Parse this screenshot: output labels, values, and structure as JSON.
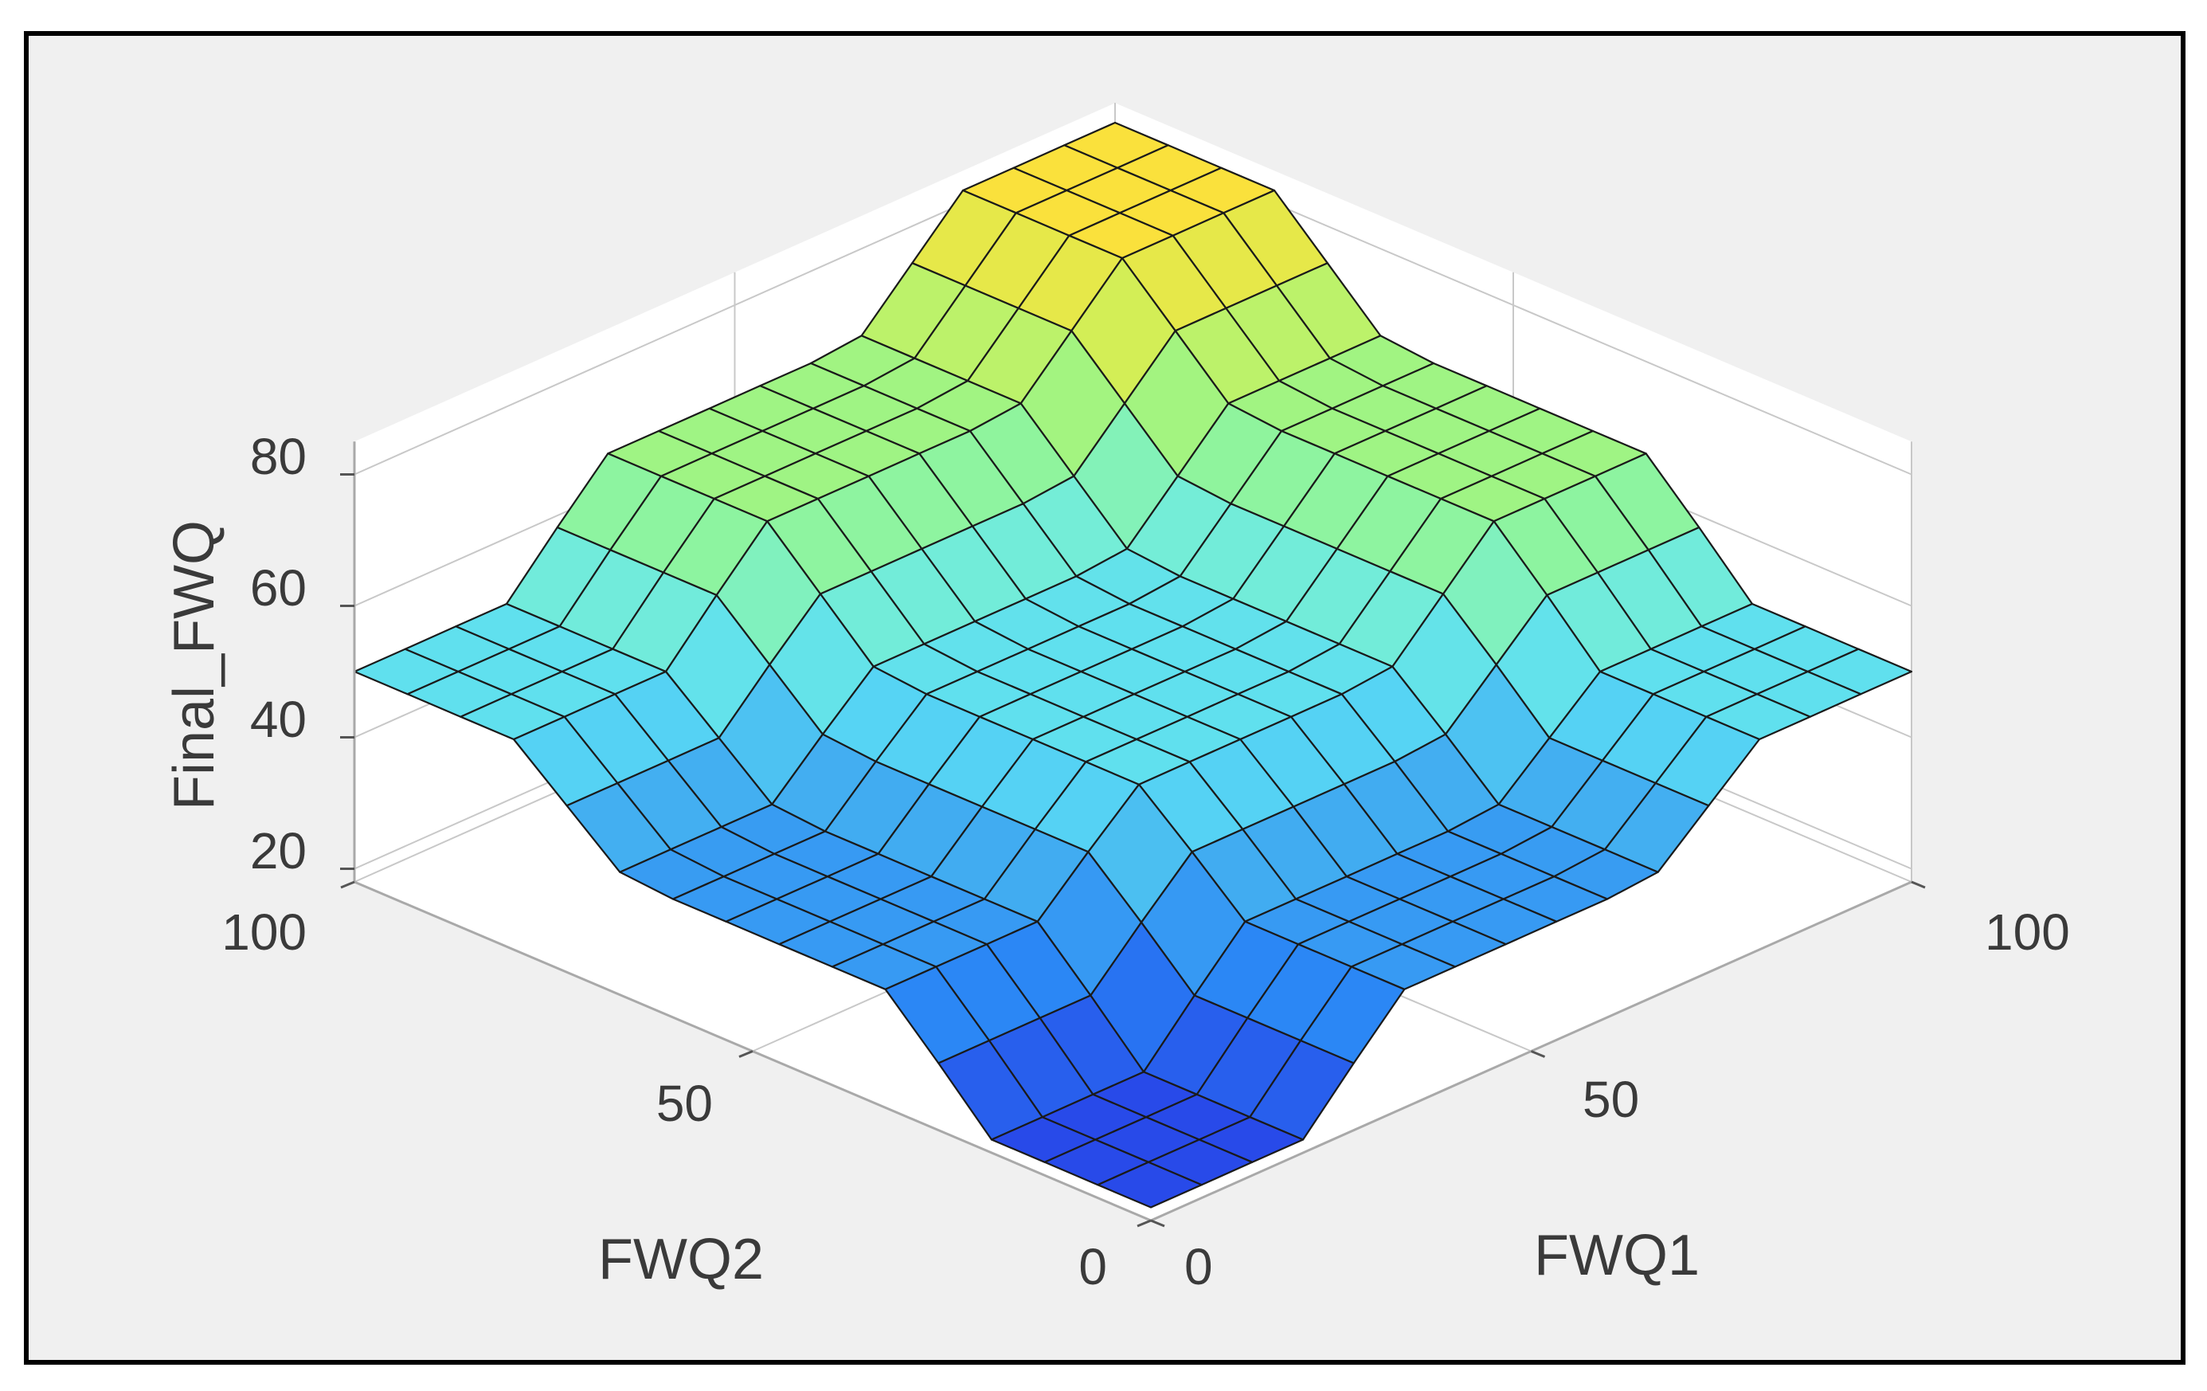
{
  "chart_data": {
    "type": "surface",
    "title": "",
    "xlabel": "FWQ1",
    "ylabel": "FWQ2",
    "zlabel": "Final_FWQ",
    "xlim": [
      0,
      100
    ],
    "ylim": [
      0,
      100
    ],
    "zlim": [
      18,
      85
    ],
    "x_ticks": [
      "0",
      "50",
      "100"
    ],
    "y_ticks": [
      "0",
      "50",
      "100"
    ],
    "z_ticks": [
      "20",
      "40",
      "60",
      "80"
    ],
    "grid": true,
    "colormap": "parula",
    "grid_resolution": 15,
    "axis_breakpoints": [
      0,
      20,
      33,
      66,
      80,
      100
    ],
    "axis_levels": [
      0,
      0,
      1,
      1,
      2,
      2
    ],
    "z_table": [
      [
        20,
        36,
        50
      ],
      [
        36,
        50,
        66
      ],
      [
        50,
        66,
        82
      ]
    ],
    "colors": {
      "edge": "#1a1a1a",
      "background": "#f0f0f0",
      "axes_lines": "#c8c8c8",
      "axes_frame": "#a9a9a9"
    }
  }
}
